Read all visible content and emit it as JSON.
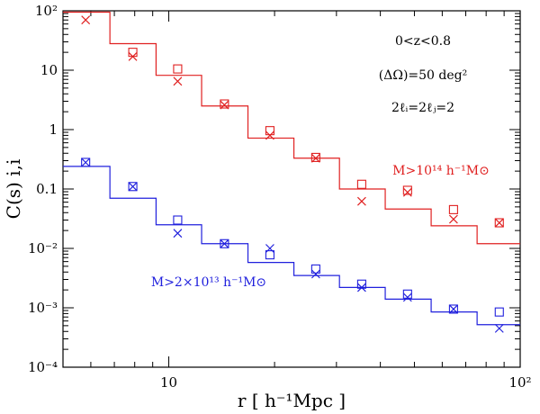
{
  "chart_data": {
    "type": "scatter",
    "title": "",
    "xlabel": "r [ h⁻¹Mpc ]",
    "ylabel": "C(s) i,i",
    "xscale": "log",
    "yscale": "log",
    "xlim": [
      5,
      100
    ],
    "ylim": [
      0.0001,
      100
    ],
    "x_ticks": [
      {
        "value": 10,
        "label": "10"
      },
      {
        "value": 100,
        "label": "10²"
      }
    ],
    "y_ticks": [
      {
        "value": 100,
        "label": "10²"
      },
      {
        "value": 10,
        "label": "10"
      },
      {
        "value": 1,
        "label": "1"
      },
      {
        "value": 0.1,
        "label": "0.1"
      },
      {
        "value": 0.01,
        "label": "10⁻²"
      },
      {
        "value": 0.001,
        "label": "10⁻³"
      },
      {
        "value": 0.0001,
        "label": "10⁻⁴"
      }
    ],
    "annotations": [
      "0<z<0.8",
      "(ΔΩ)=50 deg²",
      "2ℓᵢ=2ℓⱼ=2"
    ],
    "series": [
      {
        "name": "M>10¹⁴ h⁻¹M⊙",
        "color": "#e02020",
        "step_edges": [
          5,
          6.8,
          9.2,
          12.4,
          16.8,
          22.7,
          30.6,
          41.3,
          55.8,
          75.4,
          100
        ],
        "step_values": [
          95,
          28,
          8.2,
          2.5,
          0.72,
          0.33,
          0.1,
          0.046,
          0.024,
          0.012
        ],
        "x": [
          5.8,
          7.9,
          10.6,
          14.4,
          19.4,
          26.2,
          35.4,
          47.8,
          64.6,
          87.2
        ],
        "squares": [
          null,
          20,
          10.5,
          2.7,
          0.96,
          0.34,
          0.12,
          0.095,
          0.045,
          0.027
        ],
        "crosses": [
          70,
          17,
          6.5,
          2.6,
          0.8,
          0.33,
          0.062,
          0.088,
          0.031,
          0.027
        ]
      },
      {
        "name": "M>2×10¹³ h⁻¹M⊙",
        "color": "#2020dd",
        "step_edges": [
          5,
          6.8,
          9.2,
          12.4,
          16.8,
          22.7,
          30.6,
          41.3,
          55.8,
          75.4,
          100
        ],
        "step_values": [
          0.24,
          0.07,
          0.025,
          0.012,
          0.0058,
          0.0035,
          0.0022,
          0.0014,
          0.00085,
          0.00052
        ],
        "x": [
          5.8,
          7.9,
          10.6,
          14.4,
          19.4,
          26.2,
          35.4,
          47.8,
          64.6,
          87.2
        ],
        "squares": [
          0.28,
          0.11,
          0.03,
          0.012,
          0.0078,
          0.0045,
          0.0025,
          0.0017,
          0.00095,
          0.00085
        ],
        "crosses": [
          0.28,
          0.11,
          0.018,
          0.012,
          0.01,
          0.0037,
          0.0022,
          0.0015,
          0.00095,
          0.00045
        ]
      }
    ]
  }
}
